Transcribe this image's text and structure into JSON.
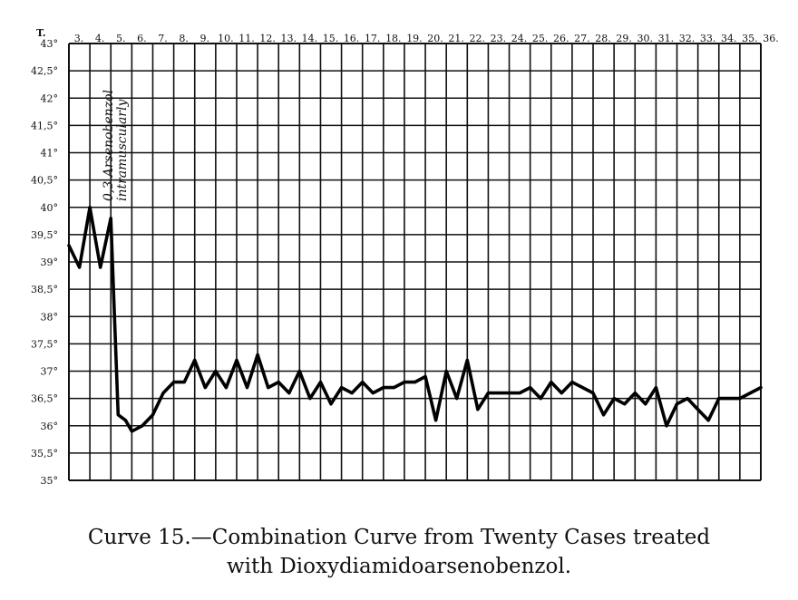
{
  "chart_data": {
    "type": "line",
    "y_axis_title": "T.",
    "y_ticks": [
      {
        "value": 43,
        "label": "43°"
      },
      {
        "value": 42.5,
        "label": "42,5°"
      },
      {
        "value": 42,
        "label": "42°"
      },
      {
        "value": 41.5,
        "label": "41,5°"
      },
      {
        "value": 41,
        "label": "41°"
      },
      {
        "value": 40.5,
        "label": "40,5°"
      },
      {
        "value": 40,
        "label": "40°"
      },
      {
        "value": 39.5,
        "label": "39,5°"
      },
      {
        "value": 39,
        "label": "39°"
      },
      {
        "value": 38.5,
        "label": "38,5°"
      },
      {
        "value": 38,
        "label": "38°"
      },
      {
        "value": 37.5,
        "label": "37,5°"
      },
      {
        "value": 37,
        "label": "37°"
      },
      {
        "value": 36.5,
        "label": "36,5°"
      },
      {
        "value": 36,
        "label": "36°"
      },
      {
        "value": 35.5,
        "label": "35,5°"
      },
      {
        "value": 35,
        "label": "35°"
      }
    ],
    "ylim": [
      35,
      43
    ],
    "x_ticks": [
      "3.",
      "4.",
      "5.",
      "6.",
      "7.",
      "8.",
      "9.",
      "10.",
      "11.",
      "12.",
      "13.",
      "14.",
      "15.",
      "16.",
      "17.",
      "18.",
      "19.",
      "20.",
      "21.",
      "22.",
      "23.",
      "24.",
      "25.",
      "26.",
      "27.",
      "28.",
      "29.",
      "30.",
      "31.",
      "32.",
      "33.",
      "34.",
      "35.",
      "36."
    ],
    "xlim": [
      3,
      36
    ],
    "grid": true,
    "annotation": {
      "lines": [
        "0,3 Arsenobenzol",
        "intramuscularly"
      ],
      "x": 5
    }
  },
  "series": [
    {
      "x": [
        3.0,
        3.5,
        4.0,
        4.5,
        5.0,
        5.35,
        5.7,
        6.0,
        6.5,
        7.0,
        7.5,
        8.0,
        8.5,
        9.0,
        9.5,
        10.0,
        10.5,
        11.0,
        11.5,
        12.0,
        12.5,
        13.0,
        13.5,
        14.0,
        14.5,
        15.0,
        15.5,
        16.0,
        16.5,
        17.0,
        17.5,
        18.0,
        18.5,
        19.0,
        19.5,
        20.0,
        20.5,
        21.0,
        21.5,
        22.0,
        22.5,
        23.0,
        23.5,
        24.0,
        24.5,
        25.0,
        25.5,
        26.0,
        26.5,
        27.0,
        27.5,
        28.0,
        28.5,
        29.0,
        29.5,
        30.0,
        30.5,
        31.0,
        31.5,
        32.0,
        32.5,
        33.0,
        33.5,
        34.0,
        34.5,
        35.0,
        35.5,
        36.0
      ],
      "y": [
        39.3,
        38.9,
        40.0,
        38.9,
        39.8,
        36.2,
        36.1,
        35.9,
        36.0,
        36.2,
        36.6,
        36.8,
        36.8,
        37.2,
        36.7,
        37.0,
        36.7,
        37.2,
        36.7,
        37.3,
        36.7,
        36.8,
        36.6,
        37.0,
        36.5,
        36.8,
        36.4,
        36.7,
        36.6,
        36.8,
        36.6,
        36.7,
        36.7,
        36.8,
        36.8,
        36.9,
        36.1,
        37.0,
        36.5,
        37.2,
        36.3,
        36.6,
        36.6,
        36.6,
        36.6,
        36.7,
        36.5,
        36.8,
        36.6,
        36.8,
        36.7,
        36.6,
        36.2,
        36.5,
        36.4,
        36.6,
        36.4,
        36.7,
        36.0,
        36.4,
        36.5,
        36.3,
        36.1,
        36.5,
        36.5,
        36.5,
        36.6,
        36.7
      ]
    }
  ],
  "caption": {
    "line1": "Curve 15.—Combination Curve from Twenty Cases treated",
    "line2": "with Dioxydiamidoarsenobenzol."
  }
}
